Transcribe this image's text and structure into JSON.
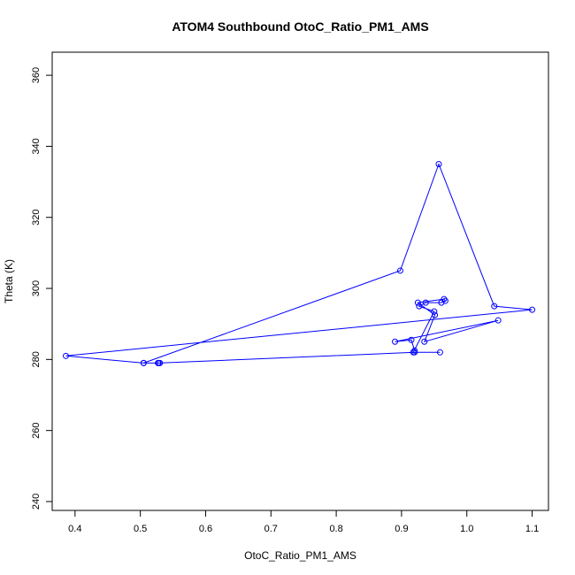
{
  "chart_data": {
    "type": "line",
    "title": "ATOM4 Southbound OtoC_Ratio_PM1_AMS",
    "xlabel": "OtoC_Ratio_PM1_AMS",
    "ylabel": "Theta (K)",
    "xlim": [
      0.365,
      1.125
    ],
    "ylim": [
      237.5,
      366.5
    ],
    "xticks": [
      0.4,
      0.5,
      0.6,
      0.7,
      0.8,
      0.9,
      1.0,
      1.1
    ],
    "xtick_labels": [
      "0.4",
      "0.5",
      "0.6",
      "0.7",
      "0.8",
      "0.9",
      "1.0",
      "1.1"
    ],
    "yticks": [
      240,
      260,
      280,
      300,
      320,
      340,
      360
    ],
    "ytick_labels": [
      "240",
      "260",
      "280",
      "300",
      "320",
      "340",
      "360"
    ],
    "grid": false,
    "markers": "open-circle",
    "series": [
      {
        "color": "#0000ff",
        "x": [
          0.53,
          0.527,
          0.505,
          0.386,
          1.1,
          1.042,
          0.957,
          0.898,
          0.505,
          0.528,
          0.92,
          0.959,
          0.918,
          0.95,
          0.927,
          0.937,
          0.961,
          0.967,
          0.965,
          0.925,
          0.951,
          0.935,
          1.048,
          0.89,
          0.915,
          0.92
        ],
        "y": [
          279,
          279,
          279,
          281,
          294,
          295,
          335,
          305,
          279,
          279,
          282,
          282,
          282,
          293.5,
          295,
          296,
          296,
          296.5,
          297,
          296,
          292.5,
          285,
          291,
          285,
          285.5,
          282.5
        ]
      }
    ]
  }
}
